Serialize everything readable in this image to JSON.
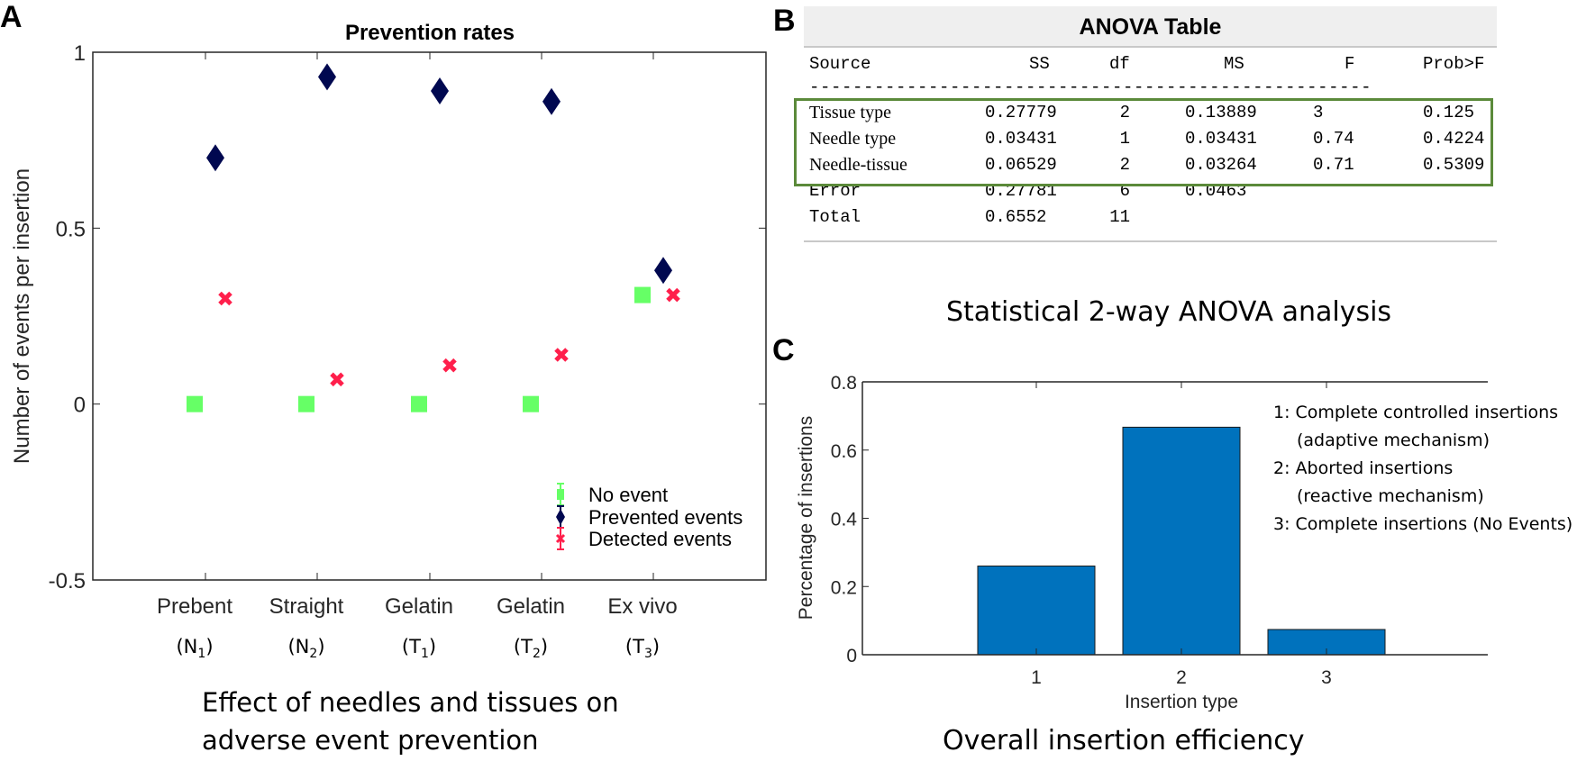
{
  "panels": {
    "a_letter": "A",
    "b_letter": "B",
    "c_letter": "C"
  },
  "captions": {
    "a_line1": "Effect of needles and tissues on",
    "a_line2": "adverse event prevention",
    "b": "Statistical 2-way ANOVA analysis",
    "c": "Overall insertion efficiency"
  },
  "colors": {
    "no_event": "#66ff66",
    "prevented": "#000850",
    "detected": "#ff1f4b",
    "bar": "#0072bd",
    "highlight_box": "#5b8a3a"
  },
  "chart_data": [
    {
      "type": "scatter",
      "title": "Prevention rates",
      "xlabel": "",
      "ylabel": "Number of events per insertion",
      "ylim": [
        -0.5,
        1
      ],
      "yticks": [
        -0.5,
        0,
        0.5,
        1
      ],
      "ytick_labels": [
        "-0.5",
        "0",
        "0.5",
        "1"
      ],
      "categories": [
        {
          "name": "Prebent",
          "sub": "N",
          "idx": "1"
        },
        {
          "name": "Straight",
          "sub": "N",
          "idx": "2"
        },
        {
          "name": "Gelatin",
          "sub": "T",
          "idx": "1"
        },
        {
          "name": "Gelatin",
          "sub": "T",
          "idx": "2"
        },
        {
          "name": "Ex vivo",
          "sub": "T",
          "idx": "3"
        }
      ],
      "series": [
        {
          "name": "No event",
          "marker": "square",
          "values": [
            0,
            0,
            0,
            0,
            0.31
          ]
        },
        {
          "name": "Prevented events",
          "marker": "diamond",
          "values": [
            0.7,
            0.93,
            0.89,
            0.86,
            0.38
          ]
        },
        {
          "name": "Detected events",
          "marker": "x",
          "values": [
            0.3,
            0.07,
            0.11,
            0.14,
            0.31
          ]
        }
      ],
      "legend": "bottom-right",
      "grid": false
    },
    {
      "type": "table",
      "title": "ANOVA Table",
      "columns": [
        "Source",
        "SS",
        "df",
        "MS",
        "F",
        "Prob>F"
      ],
      "separator": "----------------------------------------------------",
      "rows": [
        [
          "Tissue type",
          "0.27779",
          "2",
          "0.13889",
          "3",
          "0.125"
        ],
        [
          "Needle type",
          "0.03431",
          "1",
          "0.03431",
          "0.74",
          "0.4224"
        ],
        [
          "Needle-tissue",
          "0.06529",
          "2",
          "0.03264",
          "0.71",
          "0.5309"
        ],
        [
          "Error",
          "0.27781",
          "6",
          "0.0463",
          "",
          ""
        ],
        [
          "Total",
          "0.6552",
          "11",
          "",
          "",
          ""
        ]
      ],
      "highlighted_rows": [
        0,
        1,
        2
      ]
    },
    {
      "type": "bar",
      "title": "",
      "xlabel": "Insertion type",
      "ylabel": "Percentage of insertions",
      "categories": [
        "1",
        "2",
        "3"
      ],
      "values": [
        0.26,
        0.667,
        0.074
      ],
      "ylim": [
        0,
        0.8
      ],
      "yticks": [
        0,
        0.2,
        0.4,
        0.6,
        0.8
      ],
      "ytick_labels": [
        "0",
        "0.2",
        "0.4",
        "0.6",
        "0.8"
      ],
      "annotations": [
        "1: Complete controlled insertions",
        "(adaptive mechanism)",
        "2: Aborted insertions",
        "(reactive mechanism)",
        "3: Complete insertions (No Events)"
      ],
      "grid": false
    }
  ]
}
